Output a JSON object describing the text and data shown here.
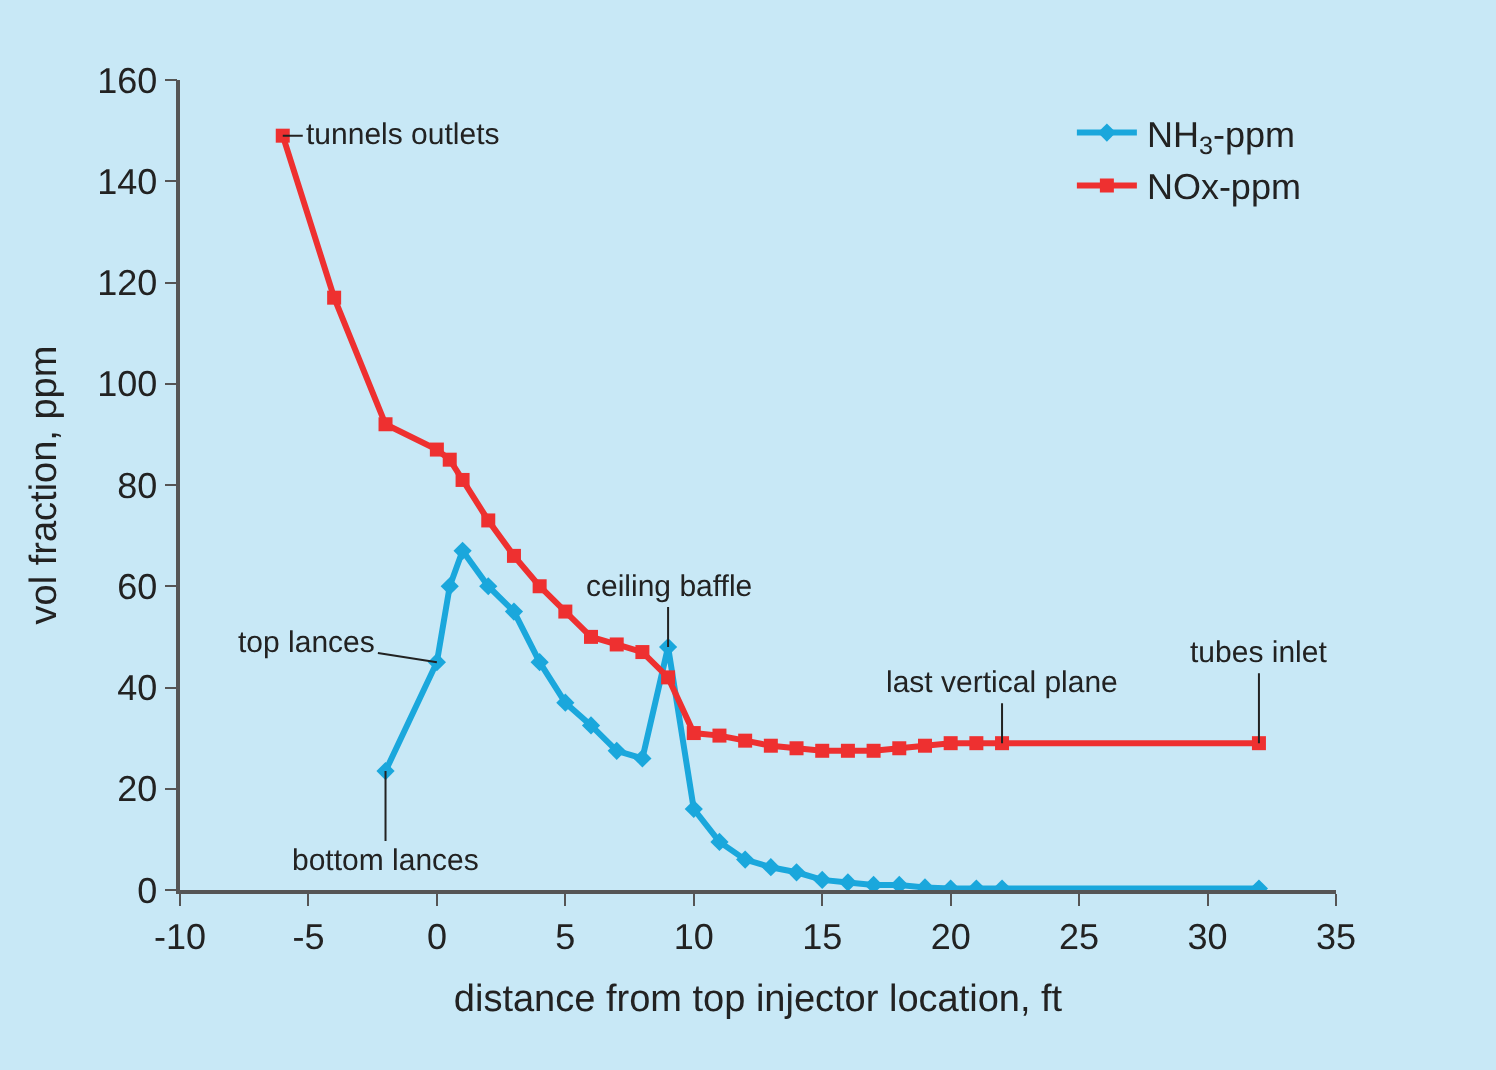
{
  "chart_data": {
    "type": "line",
    "xlabel": "distance from top injector location, ft",
    "ylabel": "vol fraction, ppm",
    "xlim": [
      -10,
      35
    ],
    "xticks": [
      -10,
      -5,
      0,
      5,
      10,
      15,
      20,
      25,
      30,
      35
    ],
    "ylim": [
      0,
      160
    ],
    "yticks": [
      0,
      20,
      40,
      60,
      80,
      100,
      120,
      140,
      160
    ],
    "grid": false,
    "legend": "top right",
    "series": [
      {
        "name": "NH$_{3}$-ppm",
        "color": "#1aa7dc",
        "marker": "diamond",
        "x": [
          -2,
          0,
          0.5,
          1,
          2,
          3,
          4,
          5,
          6,
          7,
          8,
          9,
          10,
          11,
          12,
          13,
          14,
          15,
          16,
          17,
          18,
          19,
          20,
          21,
          22,
          32
        ],
        "values": [
          23.5,
          45,
          60,
          67,
          60,
          55,
          45,
          37,
          32.5,
          27.5,
          26,
          48,
          16,
          9.5,
          6,
          4.5,
          3.5,
          2,
          1.5,
          1,
          1,
          0.5,
          0.3,
          0.3,
          0.3,
          0.3
        ]
      },
      {
        "name": "NOx-ppm",
        "color": "#ee3030",
        "marker": "square",
        "x": [
          -6,
          -4,
          -2,
          0,
          0.5,
          1,
          2,
          3,
          4,
          5,
          6,
          7,
          8,
          9,
          10,
          11,
          12,
          13,
          14,
          15,
          16,
          17,
          18,
          19,
          20,
          21,
          22,
          32
        ],
        "values": [
          149,
          117,
          92,
          87,
          85,
          81,
          73,
          66,
          60,
          55,
          50,
          48.5,
          47,
          42,
          31,
          30.5,
          29.5,
          28.5,
          28,
          27.5,
          27.5,
          27.5,
          28,
          28.5,
          29,
          29,
          29,
          29
        ]
      }
    ],
    "annotations": [
      {
        "text": "tunnels outlets",
        "x": -6,
        "y": 149
      },
      {
        "text": "top lances",
        "x": 0,
        "y": 45
      },
      {
        "text": "bottom lances",
        "x": -2,
        "y": 23.5
      },
      {
        "text": "ceiling baffle",
        "x": 9,
        "y": 48
      },
      {
        "text": "last vertical plane",
        "x": 22,
        "y": 29
      },
      {
        "text": "tubes inlet",
        "x": 32,
        "y": 29
      }
    ]
  }
}
